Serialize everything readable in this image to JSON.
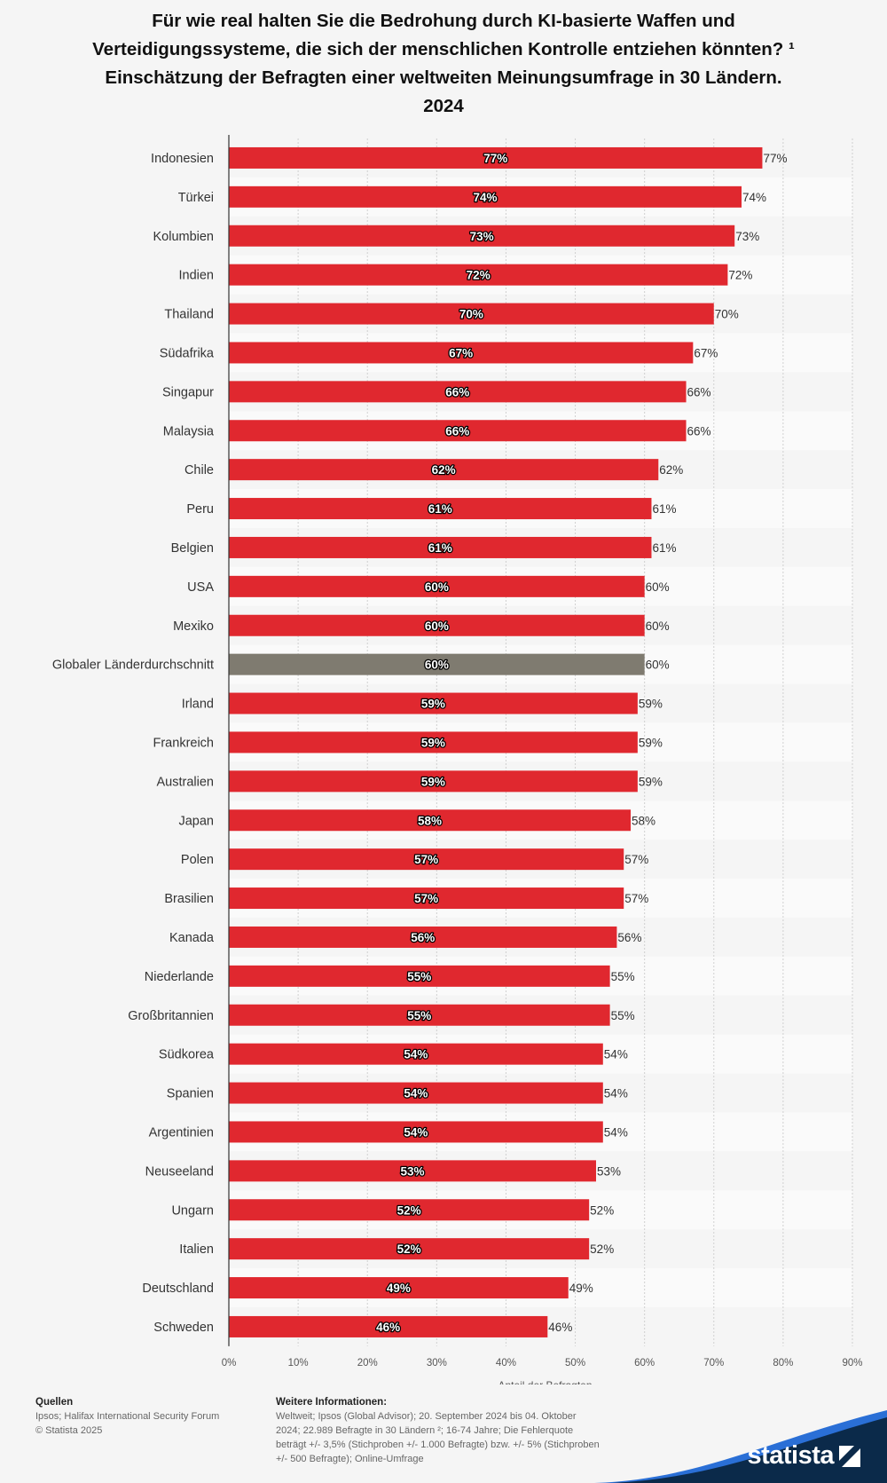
{
  "title_lines": [
    "Für wie real halten Sie die Bedrohung durch KI-basierte Waffen und",
    "Verteidigungssysteme, die sich der menschlichen Kontrolle entziehen könnten? ¹",
    "Einschätzung der Befragten einer weltweiten Meinungsumfrage in 30 Ländern.",
    "2024"
  ],
  "chart_data": {
    "type": "bar",
    "orientation": "horizontal",
    "title": "Für wie real halten Sie die Bedrohung durch KI-basierte Waffen und Verteidigungssysteme, die sich der menschlichen Kontrolle entziehen könnten? ¹",
    "subtitle": "Einschätzung der Befragten einer weltweiten Meinungsumfrage in 30 Ländern. 2024",
    "xlabel": "Anteil der Befragten",
    "ylabel": "",
    "xlim": [
      0,
      90
    ],
    "xticks": [
      0,
      10,
      20,
      30,
      40,
      50,
      60,
      70,
      80,
      90
    ],
    "tick_suffix": "%",
    "grid": true,
    "categories": [
      "Indonesien",
      "Türkei",
      "Kolumbien",
      "Indien",
      "Thailand",
      "Südafrika",
      "Singapur",
      "Malaysia",
      "Chile",
      "Peru",
      "Belgien",
      "USA",
      "Mexiko",
      "Globaler Länderdurchschnitt",
      "Irland",
      "Frankreich",
      "Australien",
      "Japan",
      "Polen",
      "Brasilien",
      "Kanada",
      "Niederlande",
      "Großbritannien",
      "Südkorea",
      "Spanien",
      "Argentinien",
      "Neuseeland",
      "Ungarn",
      "Italien",
      "Deutschland",
      "Schweden"
    ],
    "values": [
      77,
      74,
      73,
      72,
      70,
      67,
      66,
      66,
      62,
      61,
      61,
      60,
      60,
      60,
      59,
      59,
      59,
      58,
      57,
      57,
      56,
      55,
      55,
      54,
      54,
      54,
      53,
      52,
      52,
      49,
      46
    ],
    "value_labels": [
      "77%",
      "74%",
      "73%",
      "72%",
      "70%",
      "67%",
      "66%",
      "66%",
      "62%",
      "61%",
      "61%",
      "60%",
      "60%",
      "60%",
      "59%",
      "59%",
      "59%",
      "58%",
      "57%",
      "57%",
      "56%",
      "55%",
      "55%",
      "54%",
      "54%",
      "54%",
      "53%",
      "52%",
      "52%",
      "49%",
      "46%"
    ],
    "highlight_category": "Globaler Länderdurchschnitt",
    "colors": {
      "bar": "#e0282f",
      "highlight": "#7f7b70",
      "grid": "#d0d0d0",
      "axis": "#333333"
    }
  },
  "footer": {
    "sources_heading": "Quellen",
    "sources_lines": [
      "Ipsos; Halifax International Security Forum",
      "© Statista 2025"
    ],
    "info_heading": "Weitere Informationen:",
    "info_lines": [
      "Weltweit; Ipsos (Global Advisor); 20. September 2024 bis 04. Oktober",
      "2024; 22.989 Befragte in 30 Ländern ²; 16-74 Jahre; Die Fehlerquote",
      "beträgt +/- 3,5% (Stichproben +/- 1.000 Befragte) bzw. +/- 5% (Stichproben",
      "+/- 500 Befragte); Online-Umfrage"
    ]
  },
  "brand": {
    "name": "statista",
    "color": "#0b2a4a",
    "accent": "#2a6fd6"
  }
}
